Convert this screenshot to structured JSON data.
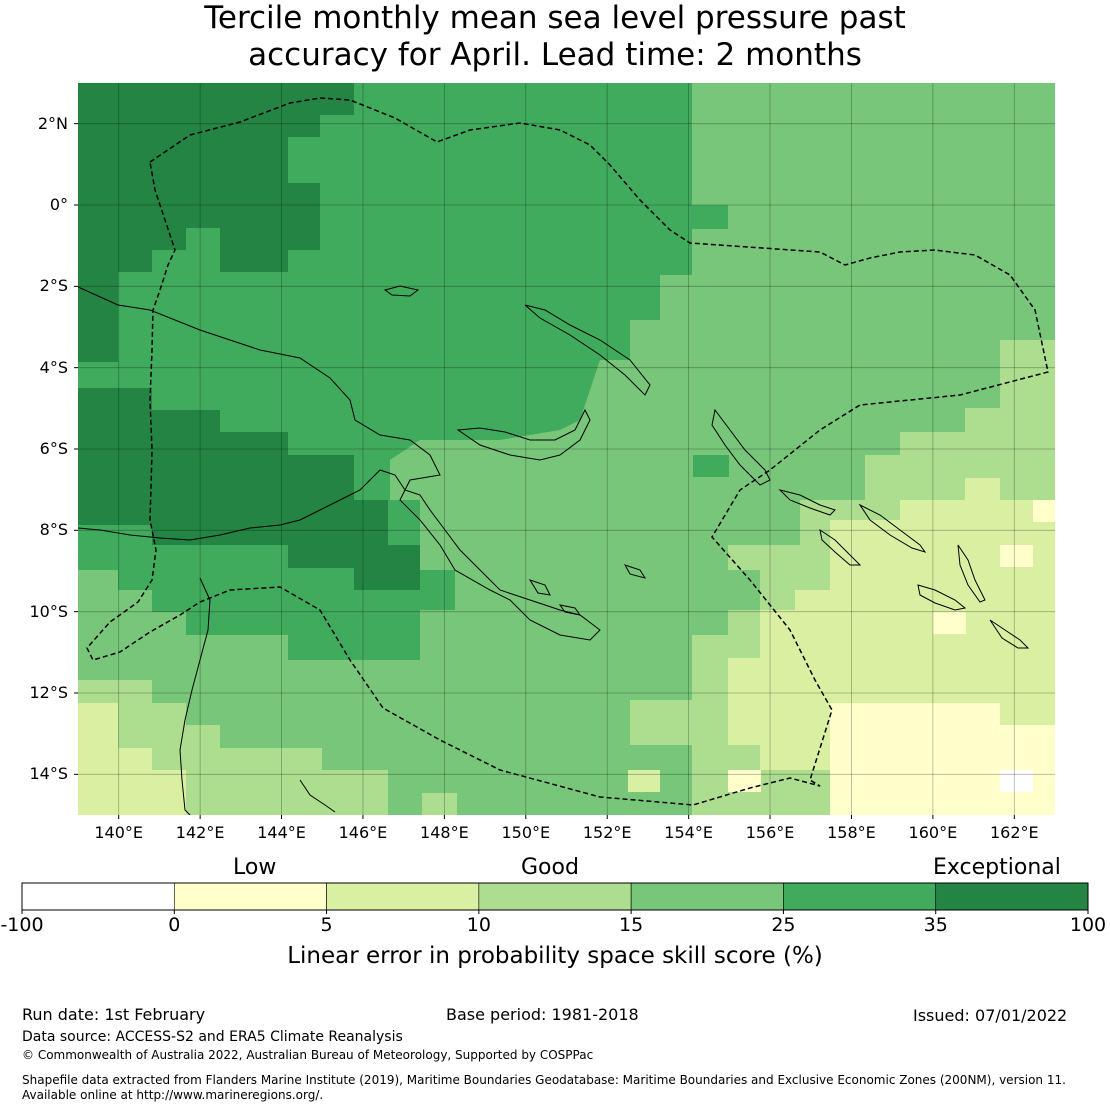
{
  "title": {
    "line1": "Tercile monthly mean sea level pressure past",
    "line2": "accuracy for April. Lead time: 2 months"
  },
  "map": {
    "lon_range": [
      139,
      163
    ],
    "lat_range": [
      -15,
      3
    ],
    "lat_ticks": [
      {
        "value": 2,
        "label": "2°N"
      },
      {
        "value": 0,
        "label": "0°"
      },
      {
        "value": -2,
        "label": "2°S"
      },
      {
        "value": -4,
        "label": "4°S"
      },
      {
        "value": -6,
        "label": "6°S"
      },
      {
        "value": -8,
        "label": "8°S"
      },
      {
        "value": -10,
        "label": "10°S"
      },
      {
        "value": -12,
        "label": "12°S"
      },
      {
        "value": -14,
        "label": "14°S"
      }
    ],
    "lon_ticks": [
      {
        "value": 140,
        "label": "140°E"
      },
      {
        "value": 142,
        "label": "142°E"
      },
      {
        "value": 144,
        "label": "144°E"
      },
      {
        "value": 146,
        "label": "146°E"
      },
      {
        "value": 148,
        "label": "148°E"
      },
      {
        "value": 150,
        "label": "150°E"
      },
      {
        "value": 152,
        "label": "152°E"
      },
      {
        "value": 154,
        "label": "154°E"
      },
      {
        "value": 156,
        "label": "156°E"
      },
      {
        "value": 158,
        "label": "158°E"
      },
      {
        "value": 160,
        "label": "160°E"
      },
      {
        "value": 162,
        "label": "162°E"
      }
    ],
    "skill_classes": [
      {
        "range": [
          35,
          100
        ],
        "color": "#238443"
      },
      {
        "range": [
          25,
          35
        ],
        "color": "#41ab5d"
      },
      {
        "range": [
          15,
          25
        ],
        "color": "#78c679"
      },
      {
        "range": [
          10,
          15
        ],
        "color": "#addd8e"
      },
      {
        "range": [
          5,
          10
        ],
        "color": "#d9f0a3"
      },
      {
        "range": [
          0,
          5
        ],
        "color": "#ffffcc"
      },
      {
        "range": [
          -100,
          0
        ],
        "color": "#ffffff"
      }
    ]
  },
  "colorbar": {
    "categories": [
      {
        "label": "Low"
      },
      {
        "label": "Good"
      },
      {
        "label": "Exceptional"
      }
    ],
    "boundaries": [
      "-100",
      "0",
      "5",
      "10",
      "15",
      "25",
      "35",
      "100"
    ],
    "colors": [
      "#ffffff",
      "#ffffcc",
      "#d9f0a3",
      "#addd8e",
      "#78c679",
      "#41ab5d",
      "#238443"
    ],
    "label": "Linear error in probability space skill score (%)"
  },
  "footer": {
    "run_date": "Run date: 1st February",
    "base_period": "Base period: 1981-2018",
    "issued": "Issued: 07/01/2022",
    "data_source": "Data source: ACCESS-S2 and ERA5 Climate Reanalysis",
    "copyright": "© Commonwealth of Australia 2022, Australian Bureau of Meteorology, Supported by COSPPac",
    "shapefile_line1": "Shapefile data extracted from Flanders Marine Institute (2019), Maritime Boundaries Geodatabase: Maritime Boundaries and Exclusive Economic Zones (200NM), version 11.",
    "shapefile_line2": "Available online at http://www.marineregions.org/."
  }
}
